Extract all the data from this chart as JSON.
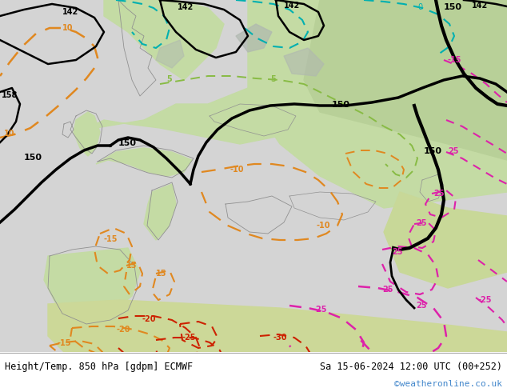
{
  "title_left": "Height/Temp. 850 hPa [gdpm] ECMWF",
  "title_right": "Sa 15-06-2024 12:00 UTC (00+252)",
  "copyright": "©weatheronline.co.uk",
  "map_bg": "#d8e8d0",
  "ocean_color": "#e0e0e8",
  "land_green": "#b8d4a0",
  "land_light": "#ccddcc",
  "footer_bg": "#ffffff",
  "cyan_color": "#00b0b0",
  "orange_color": "#e08820",
  "green_color": "#88bb44",
  "red_color": "#cc2200",
  "pink_color": "#dd22aa",
  "black_color": "#000000",
  "gray_color": "#909090",
  "copyright_color": "#4488cc"
}
